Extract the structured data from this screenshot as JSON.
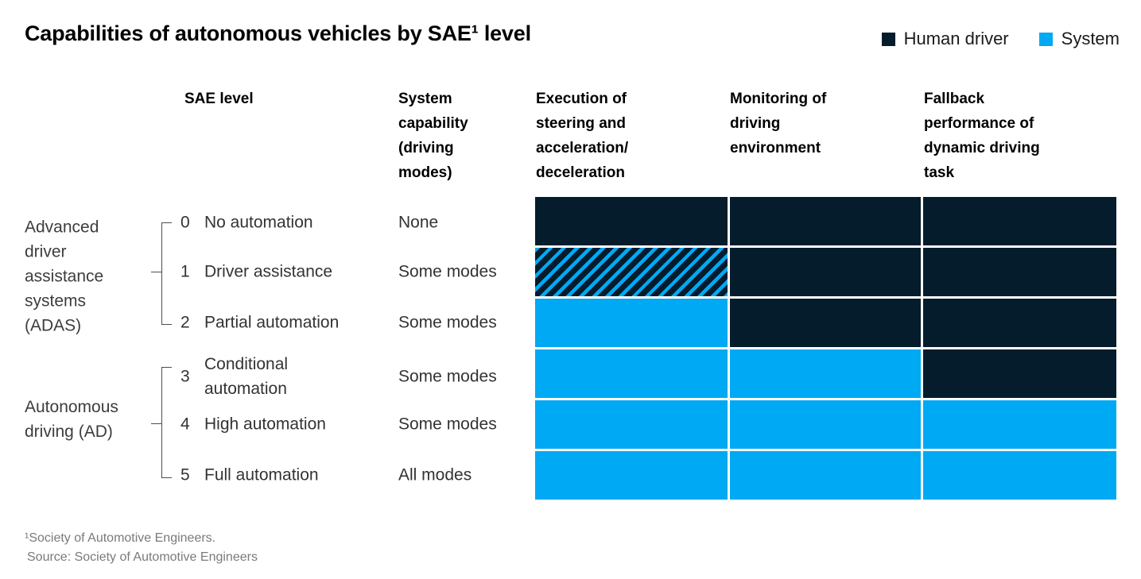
{
  "title": "Capabilities of autonomous vehicles by SAE¹ level",
  "legend": {
    "items": [
      {
        "label": "Human driver",
        "color": "#051c2c"
      },
      {
        "label": "System",
        "color": "#00a9f4"
      }
    ]
  },
  "headers": {
    "sae_level": "SAE level",
    "system_capability": "System\ncapability\n(driving\nmodes)",
    "execution": "Execution of\nsteering and\nacceleration/\ndeceleration",
    "monitoring": "Monitoring of\ndriving\nenvironment",
    "fallback": "Fallback\nperformance of\ndynamic driving\ntask"
  },
  "groups": [
    {
      "label": "Advanced\ndriver\nassistance\nsystems\n(ADAS)"
    },
    {
      "label": "Autonomous\ndriving (AD)"
    }
  ],
  "rows": [
    {
      "num": "0",
      "label": "No automation",
      "capability": "None",
      "cells": [
        "human",
        "human",
        "human"
      ]
    },
    {
      "num": "1",
      "label": "Driver assistance",
      "capability": "Some modes",
      "cells": [
        "shared",
        "human",
        "human"
      ]
    },
    {
      "num": "2",
      "label": "Partial automation",
      "capability": "Some modes",
      "cells": [
        "system",
        "human",
        "human"
      ]
    },
    {
      "num": "3",
      "label": "Conditional\nautomation",
      "capability": "Some modes",
      "cells": [
        "system",
        "system",
        "human"
      ]
    },
    {
      "num": "4",
      "label": "High automation",
      "capability": "Some modes",
      "cells": [
        "system",
        "system",
        "system"
      ]
    },
    {
      "num": "5",
      "label": "Full automation",
      "capability": "All modes",
      "cells": [
        "system",
        "system",
        "system"
      ]
    }
  ],
  "footnote": "¹Society of Automotive Engineers.",
  "source": "Source: Society of Automotive Engineers",
  "colors": {
    "human": "#051c2c",
    "system": "#00a9f4"
  },
  "chart_data": {
    "type": "heatmap",
    "title": "Capabilities of autonomous vehicles by SAE¹ level",
    "legend": [
      "Human driver",
      "System"
    ],
    "legend_position": "top-right",
    "columns": [
      "Execution of steering and acceleration/deceleration",
      "Monitoring of driving environment",
      "Fallback performance of dynamic driving task"
    ],
    "row_groups": [
      {
        "name": "Advanced driver assistance systems (ADAS)",
        "sae_levels": [
          0,
          1,
          2
        ]
      },
      {
        "name": "Autonomous driving (AD)",
        "sae_levels": [
          3,
          4,
          5
        ]
      }
    ],
    "rows": [
      {
        "sae_level": 0,
        "name": "No automation",
        "system_capability": "None",
        "values": [
          "Human driver",
          "Human driver",
          "Human driver"
        ]
      },
      {
        "sae_level": 1,
        "name": "Driver assistance",
        "system_capability": "Some modes",
        "values": [
          "Human driver and System (shared)",
          "Human driver",
          "Human driver"
        ]
      },
      {
        "sae_level": 2,
        "name": "Partial automation",
        "system_capability": "Some modes",
        "values": [
          "System",
          "Human driver",
          "Human driver"
        ]
      },
      {
        "sae_level": 3,
        "name": "Conditional automation",
        "system_capability": "Some modes",
        "values": [
          "System",
          "System",
          "Human driver"
        ]
      },
      {
        "sae_level": 4,
        "name": "High automation",
        "system_capability": "Some modes",
        "values": [
          "System",
          "System",
          "System"
        ]
      },
      {
        "sae_level": 5,
        "name": "Full automation",
        "system_capability": "All modes",
        "values": [
          "System",
          "System",
          "System"
        ]
      }
    ],
    "footnotes": [
      "¹Society of Automotive Engineers.",
      "Source: Society of Automotive Engineers"
    ]
  }
}
